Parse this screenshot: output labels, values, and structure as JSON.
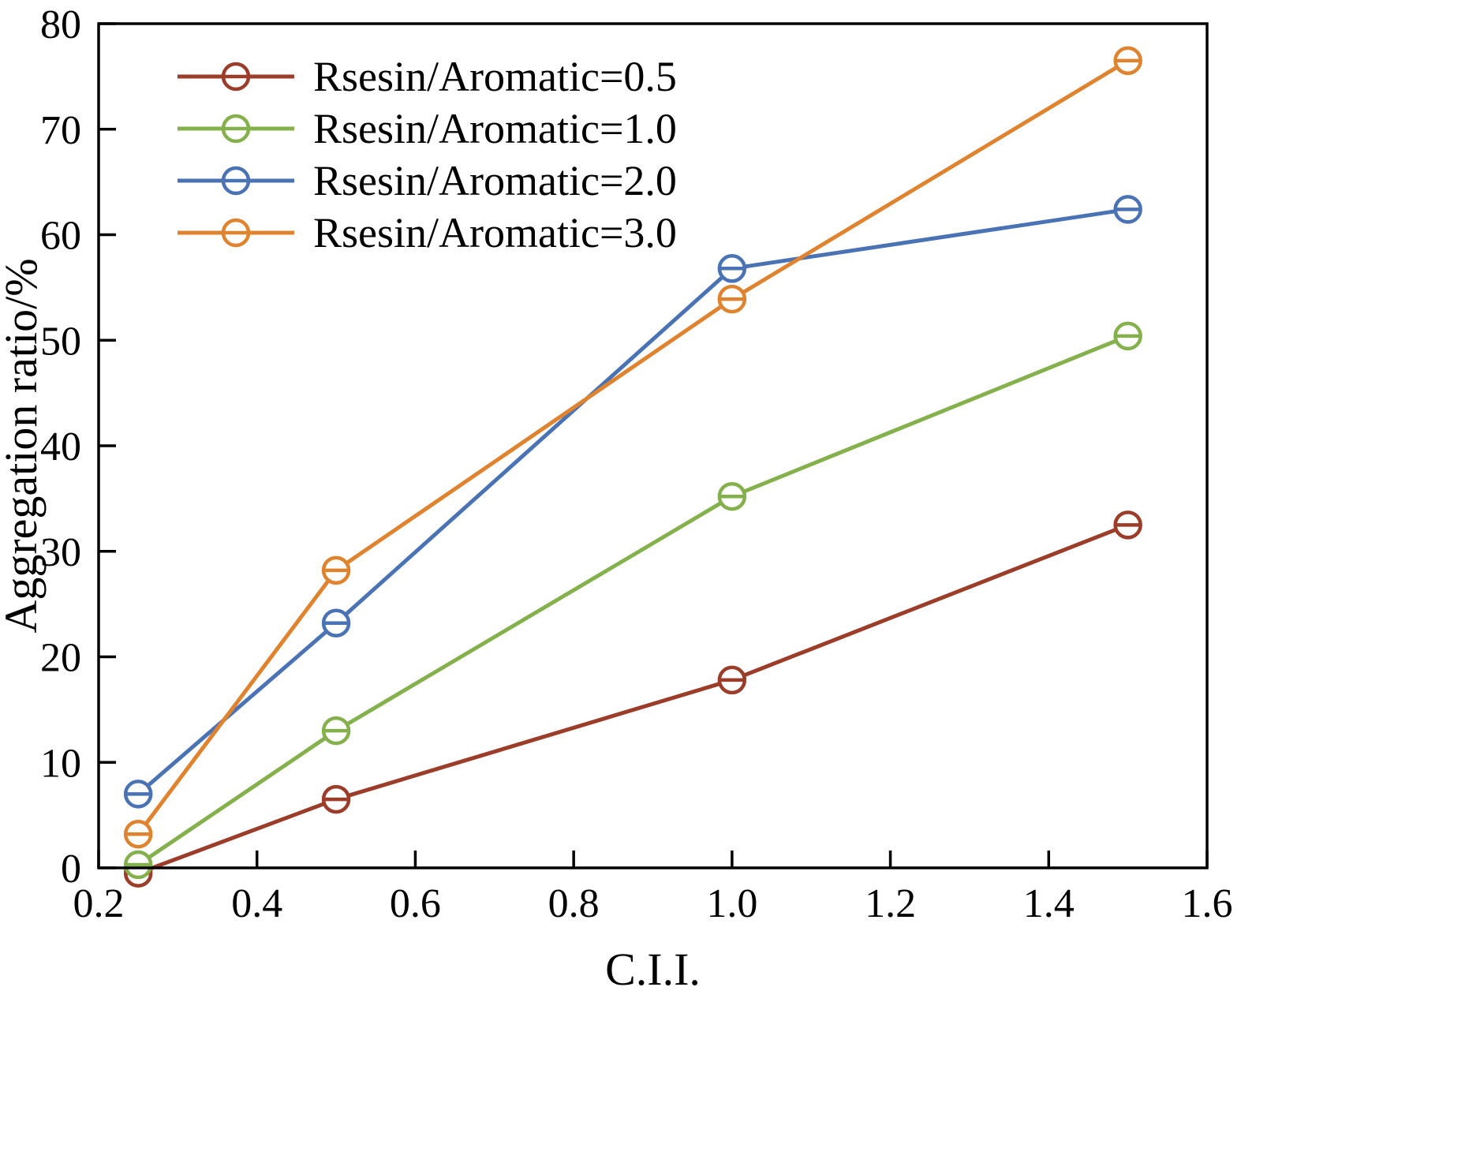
{
  "chart_data": {
    "type": "line",
    "title": "",
    "xlabel": "C.I.I.",
    "ylabel": "Aggregation ratio/%",
    "xlim": [
      0.2,
      1.6
    ],
    "ylim": [
      0,
      80
    ],
    "x_ticks": [
      0.2,
      0.4,
      0.6,
      0.8,
      1.0,
      1.2,
      1.4,
      1.6
    ],
    "y_ticks": [
      0,
      10,
      20,
      30,
      40,
      50,
      60,
      70,
      80
    ],
    "grid": false,
    "legend_position": "top-left",
    "marker": "open-circle-with-horizontal-bar",
    "x": [
      0.25,
      0.5,
      1.0,
      1.5
    ],
    "series": [
      {
        "name": "Rsesin/Aromatic=0.5",
        "color": "#9c3d2a",
        "values": [
          -0.5,
          6.5,
          17.8,
          32.5
        ]
      },
      {
        "name": "Rsesin/Aromatic=1.0",
        "color": "#85b14c",
        "values": [
          0.3,
          13.0,
          35.2,
          50.4
        ]
      },
      {
        "name": "Rsesin/Aromatic=2.0",
        "color": "#4a73b5",
        "values": [
          7.0,
          23.2,
          56.8,
          62.4
        ]
      },
      {
        "name": "Rsesin/Aromatic=3.0",
        "color": "#e0832f",
        "values": [
          3.2,
          28.2,
          53.9,
          76.5
        ]
      }
    ],
    "axis_color": "#000000"
  }
}
